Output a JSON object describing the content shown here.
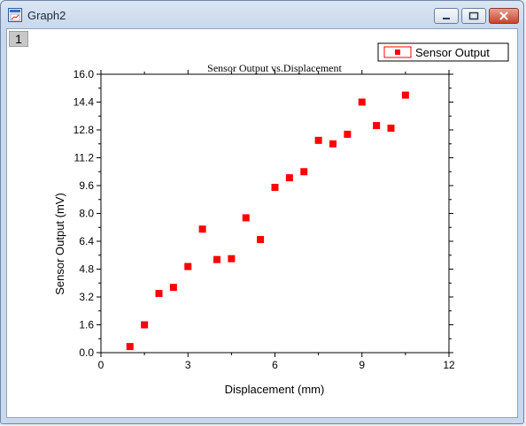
{
  "window": {
    "title": "Graph2",
    "layer_tab": "1",
    "title_icon": "graph-window-icon",
    "buttons": [
      "minimize-icon",
      "maximize-icon",
      "close-icon"
    ],
    "close_color": "#c8432b"
  },
  "chart_data": {
    "type": "scatter",
    "title": "Sensor Output vs.Displacement",
    "xlabel": "Displacement (mm)",
    "ylabel": "Sensor Output (mV)",
    "xlim": [
      0,
      12
    ],
    "ylim": [
      0.0,
      16.0
    ],
    "x_ticks": [
      "0",
      "3",
      "6",
      "9",
      "12"
    ],
    "y_ticks": [
      "0.0",
      "1.6",
      "3.2",
      "4.8",
      "6.4",
      "8.0",
      "9.6",
      "11.2",
      "12.8",
      "14.4",
      "16.0"
    ],
    "legend_position": "top-right",
    "marker_color": "#ff0000",
    "grid": false,
    "series": [
      {
        "name": "Sensor Output",
        "x": [
          1.0,
          1.5,
          2.0,
          2.5,
          3.0,
          3.5,
          4.0,
          4.5,
          5.0,
          5.5,
          6.0,
          6.5,
          7.0,
          7.5,
          8.0,
          8.5,
          9.0,
          9.5,
          10.0,
          10.5
        ],
        "y": [
          0.35,
          1.6,
          3.4,
          3.75,
          4.95,
          7.1,
          5.35,
          5.4,
          7.75,
          6.5,
          9.5,
          10.05,
          10.4,
          12.2,
          12.0,
          12.55,
          14.4,
          13.05,
          12.9,
          14.8
        ]
      }
    ]
  }
}
